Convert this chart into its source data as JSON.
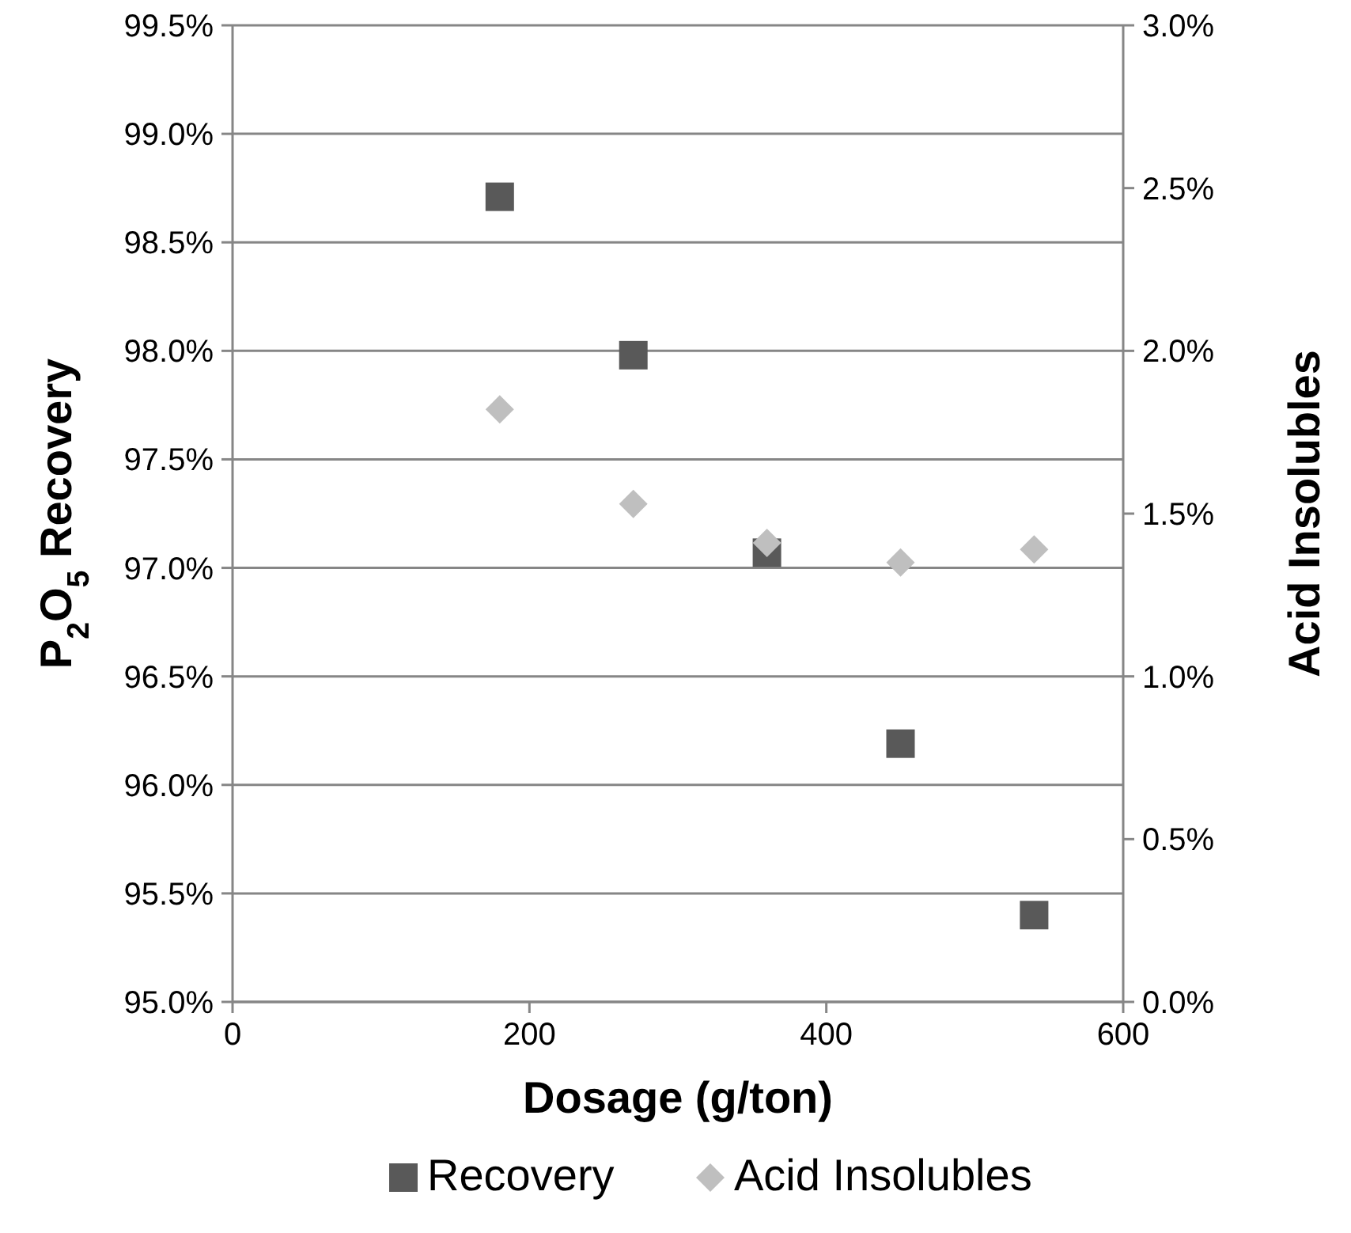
{
  "chart_data": {
    "type": "scatter",
    "xlabel": "Dosage (g/ton)",
    "ylabel": "P$_{2}$O$_{5}$ Recovery",
    "y2label": "Acid Insolubles",
    "x": [
      180,
      270,
      360,
      450,
      540
    ],
    "series": [
      {
        "name": "Recovery",
        "color": "#595959",
        "marker": "square",
        "values": [
          98.71,
          97.98,
          97.07,
          96.19,
          95.4
        ]
      },
      {
        "name": "Acid Insolubles",
        "color": "#bfbfbf",
        "marker": "diamond",
        "axis": "y2",
        "values": [
          1.82,
          1.53,
          1.41,
          1.35,
          1.39
        ]
      }
    ],
    "xlim": [
      0,
      600
    ],
    "xticks": [
      0,
      200,
      400,
      600
    ],
    "ylim": [
      95,
      99.5
    ],
    "yticks": [
      {
        "value": 95,
        "label": "95.0%"
      },
      {
        "value": 95.5,
        "label": "95.5%"
      },
      {
        "value": 96,
        "label": "96.0%"
      },
      {
        "value": 96.5,
        "label": "96.5%"
      },
      {
        "value": 97,
        "label": "97.0%"
      },
      {
        "value": 97.5,
        "label": "97.5%"
      },
      {
        "value": 98,
        "label": "98.0%"
      },
      {
        "value": 98.5,
        "label": "98.5%"
      },
      {
        "value": 99,
        "label": "99.0%"
      },
      {
        "value": 99.5,
        "label": "99.5%"
      }
    ],
    "y2lim": [
      0,
      3
    ],
    "y2ticks": [
      {
        "value": 0,
        "label": "0.0%"
      },
      {
        "value": 0.5,
        "label": "0.5%"
      },
      {
        "value": 1,
        "label": "1.0%"
      },
      {
        "value": 1.5,
        "label": "1.5%"
      },
      {
        "value": 2,
        "label": "2.0%"
      },
      {
        "value": 2.5,
        "label": "2.5%"
      },
      {
        "value": 3,
        "label": "3.0%"
      }
    ],
    "grid": "y",
    "legend": "bottom"
  }
}
